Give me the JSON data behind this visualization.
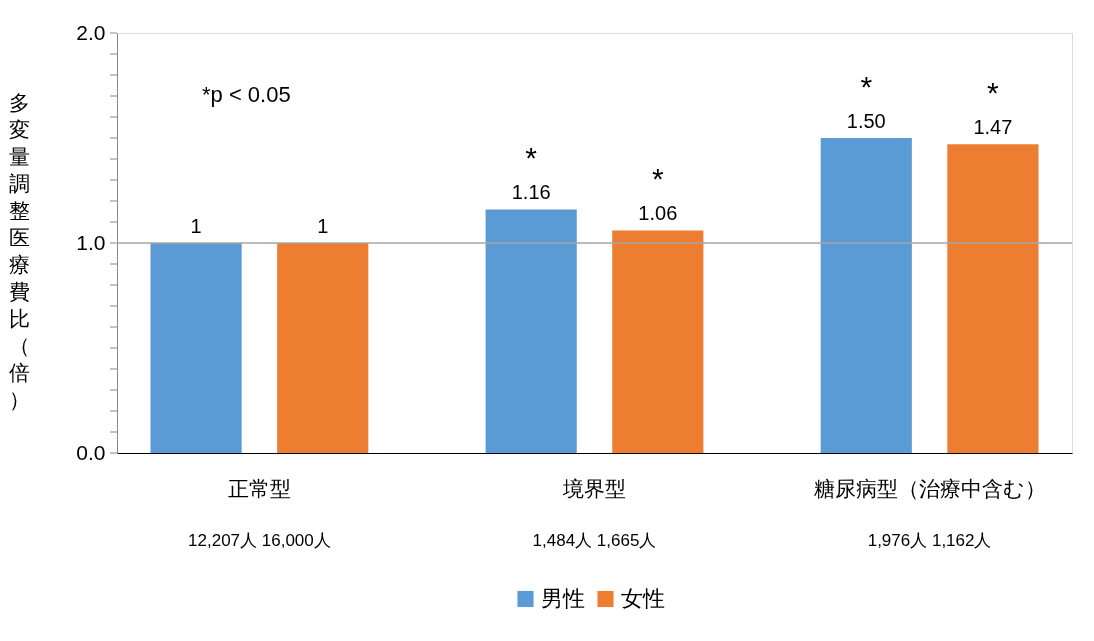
{
  "chart_data": {
    "type": "bar",
    "ylabel": "多変量調整医療費比（倍）",
    "categories": [
      "正常型",
      "境界型",
      "糖尿病型（治療中含む）"
    ],
    "series": [
      {
        "name": "男性",
        "color": "#5b9bd5",
        "values": [
          1,
          1.16,
          1.5
        ],
        "value_labels": [
          "1",
          "1.16",
          "1.50"
        ]
      },
      {
        "name": "女性",
        "color": "#ed7d31",
        "values": [
          1,
          1.06,
          1.47
        ],
        "value_labels": [
          "1",
          "1.06",
          "1.47"
        ]
      }
    ],
    "ylim": [
      0,
      2
    ],
    "yticks": [
      {
        "value": 0,
        "label": "0.0"
      },
      {
        "value": 0.1,
        "label": null
      },
      {
        "value": 0.2,
        "label": null
      },
      {
        "value": 0.3,
        "label": null
      },
      {
        "value": 0.4,
        "label": null
      },
      {
        "value": 0.5,
        "label": null
      },
      {
        "value": 0.6,
        "label": null
      },
      {
        "value": 0.7,
        "label": null
      },
      {
        "value": 0.8,
        "label": null
      },
      {
        "value": 0.9,
        "label": null
      },
      {
        "value": 1,
        "label": "1.0"
      },
      {
        "value": 1.1,
        "label": null
      },
      {
        "value": 1.2,
        "label": null
      },
      {
        "value": 1.3,
        "label": null
      },
      {
        "value": 1.4,
        "label": null
      },
      {
        "value": 1.5,
        "label": null
      },
      {
        "value": 1.6,
        "label": null
      },
      {
        "value": 1.7,
        "label": null
      },
      {
        "value": 1.8,
        "label": null
      },
      {
        "value": 1.9,
        "label": null
      },
      {
        "value": 2,
        "label": "2.0"
      }
    ],
    "ref_lines": [
      {
        "axis": "y",
        "value": 1,
        "color": "#a6a6a6"
      }
    ],
    "annotations": [
      "*p < 0.05",
      "*",
      "*",
      "*",
      "*",
      "12,207人  16,000人",
      "1,484人  1,665人",
      "1,976人 1,162人"
    ],
    "legend": "bottom",
    "grid": false
  }
}
